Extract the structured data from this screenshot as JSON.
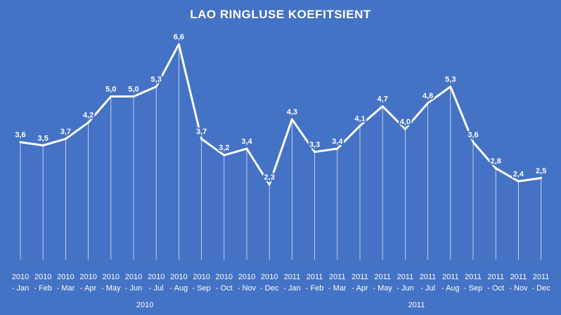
{
  "chart_data": {
    "type": "line",
    "title": "LAO RINGLUSE KOEFITSIENT",
    "xlabel": "",
    "ylabel": "",
    "ylim": [
      0,
      7
    ],
    "grid": false,
    "legend": "none",
    "decimal_separator": ",",
    "colors": {
      "background": "#4472C4",
      "line": "#ffffff",
      "droplines": "#dfe7f5",
      "text": "#ffffff"
    },
    "groups": [
      {
        "label": "2010",
        "months": [
          "Jan",
          "Feb",
          "Mar",
          "Apr",
          "May",
          "Jun",
          "Jul",
          "Aug",
          "Sep",
          "Oct",
          "Nov",
          "Dec"
        ]
      },
      {
        "label": "2011",
        "months": [
          "Jan",
          "Feb",
          "Mar",
          "Apr",
          "May",
          "Jun",
          "Jul",
          "Aug",
          "Sep",
          "Oct",
          "Nov",
          "Dec"
        ]
      }
    ],
    "categories": [
      "2010 - Jan",
      "2010 - Feb",
      "2010 - Mar",
      "2010 - Apr",
      "2010 - May",
      "2010 - Jun",
      "2010 - Jul",
      "2010 - Aug",
      "2010 - Sep",
      "2010 - Oct",
      "2010 - Nov",
      "2010 - Dec",
      "2011 - Jan",
      "2011 - Feb",
      "2011 - Mar",
      "2011 - Apr",
      "2011 - May",
      "2011 - Jun",
      "2011 - Jul",
      "2011 - Aug",
      "2011 - Sep",
      "2011 - Oct",
      "2011 - Nov",
      "2011 - Dec"
    ],
    "values": [
      3.6,
      3.5,
      3.7,
      4.2,
      5.0,
      5.0,
      5.3,
      6.6,
      3.7,
      3.2,
      3.4,
      2.3,
      4.3,
      3.3,
      3.4,
      4.1,
      4.7,
      4.0,
      4.8,
      5.3,
      3.6,
      2.8,
      2.4,
      2.5
    ]
  }
}
